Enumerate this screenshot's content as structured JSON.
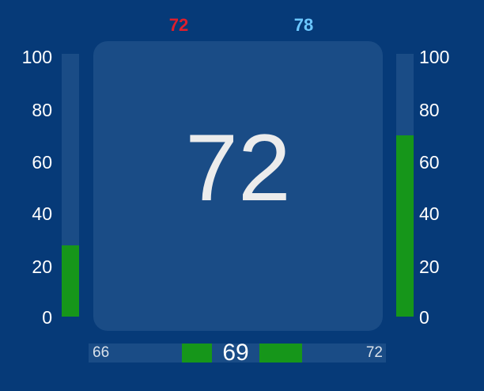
{
  "top_readouts": {
    "left": "72",
    "right": "78",
    "left_color": "#e01e2b",
    "right_color": "#6cc7ff"
  },
  "axes": {
    "ticks": [
      "100",
      "80",
      "60",
      "40",
      "20",
      "0"
    ],
    "min": 0,
    "max": 100
  },
  "left_bar": {
    "value": 27,
    "color": "#16961a"
  },
  "right_bar": {
    "value": 69,
    "color": "#16961a"
  },
  "main_panel": {
    "value": "72"
  },
  "bottom_range": {
    "min_label": "66",
    "center_value": "69",
    "max_label": "72"
  }
}
